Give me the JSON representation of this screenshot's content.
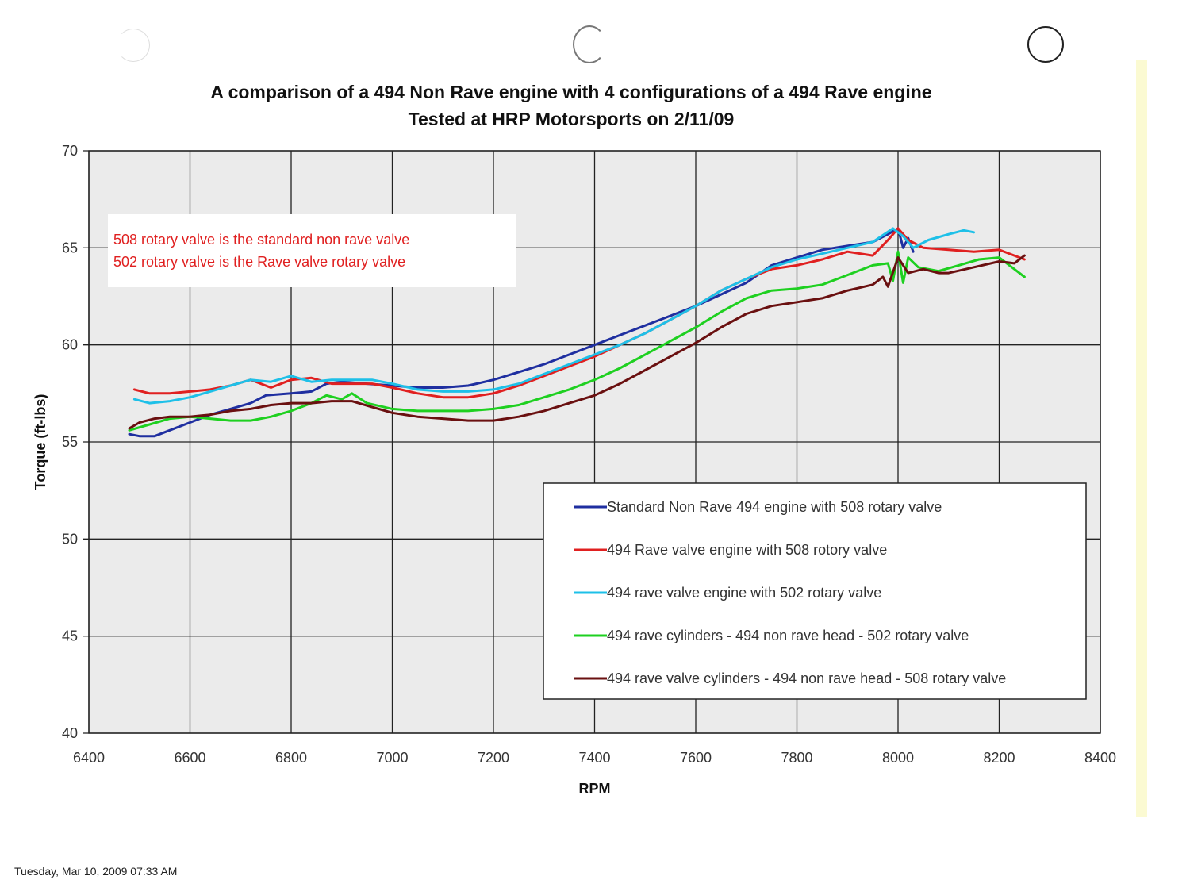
{
  "page": {
    "footer_timestamp": "Tuesday, Mar 10, 2009  07:33 AM"
  },
  "chart_data": {
    "type": "line",
    "title": "A comparison of a 494 Non Rave engine with 4 configurations of a 494 Rave engine",
    "subtitle": "Tested at HRP Motorsports on 2/11/09",
    "xlabel": "RPM",
    "ylabel": "Torque (ft-lbs)",
    "xlim": [
      6400,
      8400
    ],
    "ylim": [
      40,
      70
    ],
    "xticks": [
      6400,
      6600,
      6800,
      7000,
      7200,
      7400,
      7600,
      7800,
      8000,
      8200,
      8400
    ],
    "yticks": [
      40,
      45,
      50,
      55,
      60,
      65,
      70
    ],
    "grid": true,
    "annotation_lines": [
      "508 rotary valve is the standard non rave valve",
      "502 rotary valve is the Rave valve rotary valve"
    ],
    "annotation_color": "#e02020",
    "legend_position": "bottom-right",
    "series": [
      {
        "name": "Standard Non Rave 494 engine with 508 rotary valve",
        "color": "#1f2fa0",
        "x": [
          6480,
          6500,
          6530,
          6560,
          6600,
          6640,
          6680,
          6720,
          6750,
          6800,
          6840,
          6870,
          6900,
          6950,
          7000,
          7050,
          7100,
          7150,
          7200,
          7250,
          7300,
          7350,
          7400,
          7450,
          7500,
          7550,
          7600,
          7650,
          7700,
          7750,
          7800,
          7850,
          7900,
          7950,
          7980,
          8000,
          8010,
          8020,
          8030
        ],
        "values": [
          55.4,
          55.3,
          55.3,
          55.6,
          56.0,
          56.4,
          56.7,
          57.0,
          57.4,
          57.5,
          57.6,
          58.0,
          58.1,
          58.0,
          57.9,
          57.8,
          57.8,
          57.9,
          58.2,
          58.6,
          59.0,
          59.5,
          60.0,
          60.5,
          61.0,
          61.5,
          62.0,
          62.6,
          63.2,
          64.1,
          64.5,
          64.9,
          65.1,
          65.3,
          65.7,
          66.0,
          65.0,
          65.5,
          64.8
        ]
      },
      {
        "name": "494 Rave valve engine with 508 rotory valve",
        "color": "#e02020",
        "x": [
          6490,
          6520,
          6560,
          6600,
          6640,
          6680,
          6720,
          6760,
          6800,
          6840,
          6880,
          6920,
          6960,
          7000,
          7050,
          7100,
          7150,
          7200,
          7250,
          7300,
          7350,
          7400,
          7450,
          7500,
          7550,
          7600,
          7650,
          7700,
          7750,
          7800,
          7850,
          7900,
          7950,
          7980,
          8000,
          8020,
          8050,
          8100,
          8150,
          8200,
          8230,
          8250
        ],
        "values": [
          57.7,
          57.5,
          57.5,
          57.6,
          57.7,
          57.9,
          58.2,
          57.8,
          58.2,
          58.3,
          58.0,
          58.0,
          58.0,
          57.8,
          57.5,
          57.3,
          57.3,
          57.5,
          57.9,
          58.4,
          58.9,
          59.4,
          60.0,
          60.6,
          61.3,
          62.0,
          62.8,
          63.4,
          63.9,
          64.1,
          64.4,
          64.8,
          64.6,
          65.4,
          66.0,
          65.4,
          65.0,
          64.9,
          64.8,
          64.9,
          64.6,
          64.4
        ]
      },
      {
        "name": "494 rave valve engine with 502 rotary valve",
        "color": "#1ec0e8",
        "x": [
          6490,
          6520,
          6560,
          6600,
          6640,
          6680,
          6720,
          6760,
          6800,
          6840,
          6880,
          6920,
          6960,
          7000,
          7050,
          7100,
          7150,
          7200,
          7250,
          7300,
          7350,
          7400,
          7450,
          7500,
          7550,
          7600,
          7650,
          7700,
          7750,
          7800,
          7850,
          7900,
          7950,
          7990,
          8010,
          8030,
          8060,
          8100,
          8130,
          8150
        ],
        "values": [
          57.2,
          57.0,
          57.1,
          57.3,
          57.6,
          57.9,
          58.2,
          58.1,
          58.4,
          58.1,
          58.2,
          58.2,
          58.2,
          58.0,
          57.7,
          57.6,
          57.6,
          57.7,
          58.0,
          58.5,
          59.0,
          59.5,
          60.0,
          60.6,
          61.3,
          62.0,
          62.8,
          63.4,
          64.0,
          64.4,
          64.7,
          65.0,
          65.3,
          66.0,
          65.6,
          65.0,
          65.4,
          65.7,
          65.9,
          65.8
        ]
      },
      {
        "name": "494 rave cylinders - 494 non rave head - 502 rotary valve",
        "color": "#1ed020",
        "x": [
          6480,
          6520,
          6560,
          6600,
          6640,
          6680,
          6720,
          6760,
          6800,
          6840,
          6870,
          6900,
          6920,
          6950,
          7000,
          7050,
          7100,
          7150,
          7200,
          7250,
          7300,
          7350,
          7400,
          7450,
          7500,
          7550,
          7600,
          7650,
          7700,
          7750,
          7800,
          7850,
          7900,
          7950,
          7980,
          7990,
          8000,
          8010,
          8020,
          8040,
          8080,
          8120,
          8160,
          8200,
          8230,
          8250
        ],
        "values": [
          55.6,
          55.9,
          56.2,
          56.3,
          56.2,
          56.1,
          56.1,
          56.3,
          56.6,
          57.0,
          57.4,
          57.2,
          57.5,
          57.0,
          56.7,
          56.6,
          56.6,
          56.6,
          56.7,
          56.9,
          57.3,
          57.7,
          58.2,
          58.8,
          59.5,
          60.2,
          60.9,
          61.7,
          62.4,
          62.8,
          62.9,
          63.1,
          63.6,
          64.1,
          64.2,
          63.3,
          64.8,
          63.2,
          64.5,
          64.0,
          63.8,
          64.1,
          64.4,
          64.5,
          63.9,
          63.5
        ]
      },
      {
        "name": "494 rave valve cylinders - 494 non rave head - 508 rotary valve",
        "color": "#6a1010",
        "x": [
          6480,
          6500,
          6530,
          6560,
          6600,
          6640,
          6680,
          6720,
          6760,
          6800,
          6840,
          6880,
          6920,
          6960,
          7000,
          7050,
          7100,
          7150,
          7200,
          7250,
          7300,
          7350,
          7400,
          7450,
          7500,
          7550,
          7600,
          7650,
          7700,
          7750,
          7800,
          7850,
          7900,
          7950,
          7970,
          7980,
          8000,
          8020,
          8050,
          8080,
          8100,
          8150,
          8200,
          8230,
          8250
        ],
        "values": [
          55.7,
          56.0,
          56.2,
          56.3,
          56.3,
          56.4,
          56.6,
          56.7,
          56.9,
          57.0,
          57.0,
          57.1,
          57.1,
          56.8,
          56.5,
          56.3,
          56.2,
          56.1,
          56.1,
          56.3,
          56.6,
          57.0,
          57.4,
          58.0,
          58.7,
          59.4,
          60.1,
          60.9,
          61.6,
          62.0,
          62.2,
          62.4,
          62.8,
          63.1,
          63.5,
          63.0,
          64.5,
          63.7,
          63.9,
          63.7,
          63.7,
          64.0,
          64.3,
          64.2,
          64.6
        ]
      }
    ]
  }
}
